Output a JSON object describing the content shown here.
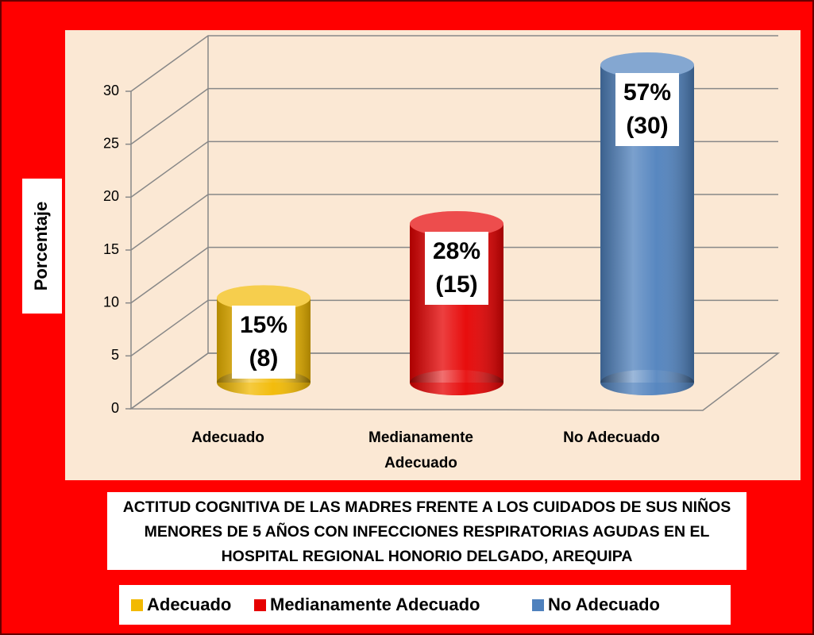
{
  "chart_data": {
    "type": "bar",
    "title": "ACTITUD COGNITIVA DE LAS MADRES FRENTE A LOS CUIDADOS DE SUS NIÑOS MENORES DE 5 AÑOS CON INFECCIONES RESPIRATORIAS AGUDAS EN EL HOSPITAL REGIONAL HONORIO DELGADO, AREQUIPA",
    "y_label": "Porcentaje",
    "categories": [
      "Adecuado",
      "Medianamente Adecuado",
      "No Adecuado"
    ],
    "values": [
      8,
      15,
      30
    ],
    "value_labels": [
      "15% (8)",
      "28% (15)",
      "57% (30)"
    ],
    "colors": [
      "#f2b900",
      "#e60000",
      "#4f81bd"
    ],
    "ylim": [
      0,
      30
    ],
    "yticks": [
      0,
      5,
      10,
      15,
      20,
      25,
      30
    ],
    "grid": true,
    "legend": "bottom"
  }
}
